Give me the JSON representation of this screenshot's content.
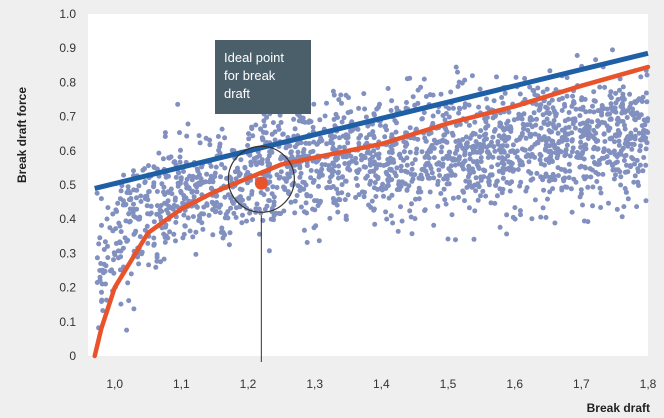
{
  "chart_data": {
    "type": "scatter",
    "title": "",
    "xlabel": "Break draft",
    "ylabel": "Break draft force",
    "xlim": [
      0.96,
      1.8
    ],
    "ylim": [
      0,
      1.0
    ],
    "x_ticks": [
      "1,0",
      "1,1",
      "1,2",
      "1,3",
      "1,4",
      "1,5",
      "1,6",
      "1,7",
      "1,8"
    ],
    "y_ticks": [
      "0",
      "0.1",
      "0.2",
      "0.3",
      "0.4",
      "0.5",
      "0.6",
      "0.7",
      "0.8",
      "0.9",
      "1.0"
    ],
    "grid": false,
    "colors": {
      "scatter": "#8190bf",
      "linear_fit": "#1f5fa6",
      "curve_fit": "#e8532b",
      "ideal_point": "#e8532b",
      "annotation_box": "#4b5f6b",
      "plot_background": "#ffffff"
    },
    "series": [
      {
        "type": "scatter",
        "trend": "0.66 + 0.1*ln(x-0.96), y spread ±0.15, x from 0.97 to 1.8, ~2000 points",
        "x_range": [
          0.97,
          1.8
        ],
        "y_range": [
          0.0,
          1.0
        ]
      },
      {
        "type": "line",
        "points": [
          [
            0.97,
            0.49
          ],
          [
            1.8,
            0.885
          ]
        ]
      },
      {
        "type": "line",
        "points": [
          [
            0.97,
            0.0
          ],
          [
            0.98,
            0.08
          ],
          [
            1.0,
            0.2
          ],
          [
            1.05,
            0.36
          ],
          [
            1.1,
            0.43
          ],
          [
            1.15,
            0.48
          ],
          [
            1.2,
            0.52
          ],
          [
            1.25,
            0.56
          ],
          [
            1.3,
            0.58
          ],
          [
            1.4,
            0.62
          ],
          [
            1.5,
            0.68
          ],
          [
            1.6,
            0.73
          ],
          [
            1.7,
            0.79
          ],
          [
            1.8,
            0.845
          ]
        ]
      }
    ],
    "annotations": [
      {
        "text": [
          "Ideal point",
          "for break",
          "draft"
        ],
        "point": [
          1.22,
          0.505
        ]
      }
    ]
  }
}
